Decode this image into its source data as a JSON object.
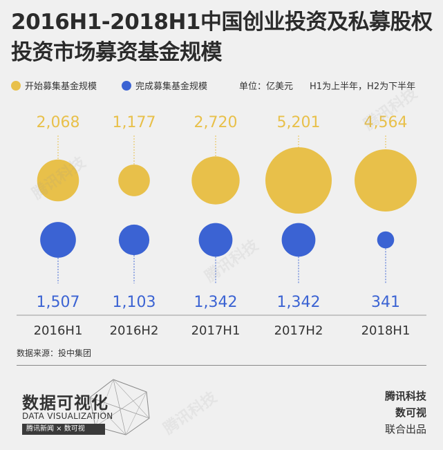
{
  "title_line1": "2016H1-2018H1中国创业投资及私募股权",
  "title_line2": "投资市场募资基金规模",
  "legend": {
    "start_label": "开始募集基金规模",
    "done_label": "完成募集基金规模",
    "unit": "单位：亿美元",
    "note": "H1为上半年，H2为下半年"
  },
  "colors": {
    "start": "#e8c04a",
    "done": "#3b63d3"
  },
  "chart_data": {
    "type": "scatter",
    "categories": [
      "2016H1",
      "2016H2",
      "2017H1",
      "2017H2",
      "2018H1"
    ],
    "series": [
      {
        "name": "开始募集基金规模",
        "values": [
          2068,
          1177,
          2720,
          5201,
          4564
        ],
        "labels": [
          "2,068",
          "1,177",
          "2,720",
          "5,201",
          "4,564"
        ]
      },
      {
        "name": "完成募集基金规模",
        "values": [
          1507,
          1103,
          1342,
          1342,
          341
        ],
        "labels": [
          "1,507",
          "1,103",
          "1,342",
          "1,342",
          "341"
        ]
      }
    ],
    "unit": "亿美元",
    "title": "2016H1-2018H1中国创业投资及私募股权投资市场募资基金规模"
  },
  "source": "数据来源：投中集团",
  "badge": {
    "cn": "数据可视化",
    "en": "DATA VISUALIZATION",
    "bar": "腾讯新闻 × 数可视"
  },
  "credits": {
    "line1": "腾讯科技",
    "line2": "数可视",
    "line3": "联合出品"
  },
  "watermark": "腾讯科技"
}
